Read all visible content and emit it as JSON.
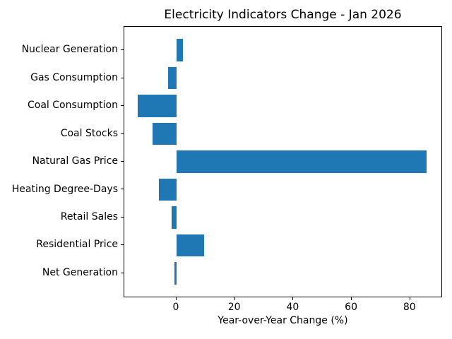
{
  "chart_data": {
    "type": "bar",
    "orientation": "horizontal",
    "title": "Electricity Indicators Change - Jan 2026",
    "xlabel": "Year-over-Year Change (%)",
    "ylabel": "",
    "categories": [
      "Nuclear Generation",
      "Gas Consumption",
      "Coal Consumption",
      "Coal Stocks",
      "Natural Gas Price",
      "Heating Degree-Days",
      "Retail Sales",
      "Residential Price",
      "Net Generation"
    ],
    "values": [
      2.2,
      -3.0,
      -13.3,
      -8.2,
      85.6,
      -6.0,
      -1.6,
      9.4,
      -0.7
    ],
    "xticks": [
      0,
      20,
      40,
      60,
      80
    ],
    "xlim": [
      -17.9,
      90.7
    ],
    "bar_color": "#1f77b4",
    "grid": false,
    "legend_position": "none",
    "frame": true
  },
  "colors": {
    "background": "#ffffff",
    "text": "#000000",
    "axis": "#000000",
    "accent": "#1f77b4"
  }
}
